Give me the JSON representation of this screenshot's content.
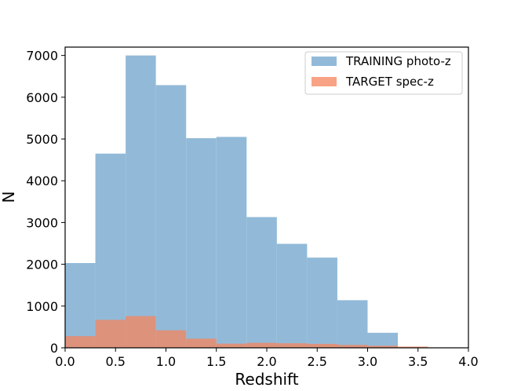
{
  "chart_data": {
    "type": "bar",
    "xlabel": "Redshift",
    "ylabel": "N",
    "xlim": [
      0.0,
      4.0
    ],
    "ylim": [
      0,
      7200
    ],
    "xticks": [
      "0.0",
      "0.5",
      "1.0",
      "1.5",
      "2.0",
      "2.5",
      "3.0",
      "3.5",
      "4.0"
    ],
    "yticks": [
      "0",
      "1000",
      "2000",
      "3000",
      "4000",
      "5000",
      "6000",
      "7000"
    ],
    "grid": false,
    "legend_position": "top-right",
    "series": [
      {
        "name": "TRAINING photo-z",
        "color": "#8cb6d6",
        "bins": [
          {
            "x0": 0.0,
            "x1": 0.3,
            "value": 2030
          },
          {
            "x0": 0.3,
            "x1": 0.6,
            "value": 4650
          },
          {
            "x0": 0.6,
            "x1": 0.9,
            "value": 7000
          },
          {
            "x0": 0.9,
            "x1": 1.2,
            "value": 6290
          },
          {
            "x0": 1.2,
            "x1": 1.5,
            "value": 5020
          },
          {
            "x0": 1.5,
            "x1": 1.8,
            "value": 5050
          },
          {
            "x0": 1.8,
            "x1": 2.1,
            "value": 3130
          },
          {
            "x0": 2.1,
            "x1": 2.4,
            "value": 2490
          },
          {
            "x0": 2.4,
            "x1": 2.7,
            "value": 2160
          },
          {
            "x0": 2.7,
            "x1": 3.0,
            "value": 1140
          },
          {
            "x0": 3.0,
            "x1": 3.3,
            "value": 360
          }
        ]
      },
      {
        "name": "TARGET spec-z",
        "color": "#f5845e",
        "bins": [
          {
            "x0": 0.0,
            "x1": 0.3,
            "value": 280
          },
          {
            "x0": 0.3,
            "x1": 0.6,
            "value": 670
          },
          {
            "x0": 0.6,
            "x1": 0.9,
            "value": 760
          },
          {
            "x0": 0.9,
            "x1": 1.2,
            "value": 420
          },
          {
            "x0": 1.2,
            "x1": 1.5,
            "value": 220
          },
          {
            "x0": 1.5,
            "x1": 1.8,
            "value": 100
          },
          {
            "x0": 1.8,
            "x1": 2.1,
            "value": 120
          },
          {
            "x0": 2.1,
            "x1": 2.4,
            "value": 110
          },
          {
            "x0": 2.4,
            "x1": 2.7,
            "value": 95
          },
          {
            "x0": 2.7,
            "x1": 3.0,
            "value": 70
          },
          {
            "x0": 3.0,
            "x1": 3.3,
            "value": 50
          },
          {
            "x0": 3.3,
            "x1": 3.6,
            "value": 30
          },
          {
            "x0": 3.6,
            "x1": 3.9,
            "value": 10
          }
        ]
      }
    ]
  }
}
